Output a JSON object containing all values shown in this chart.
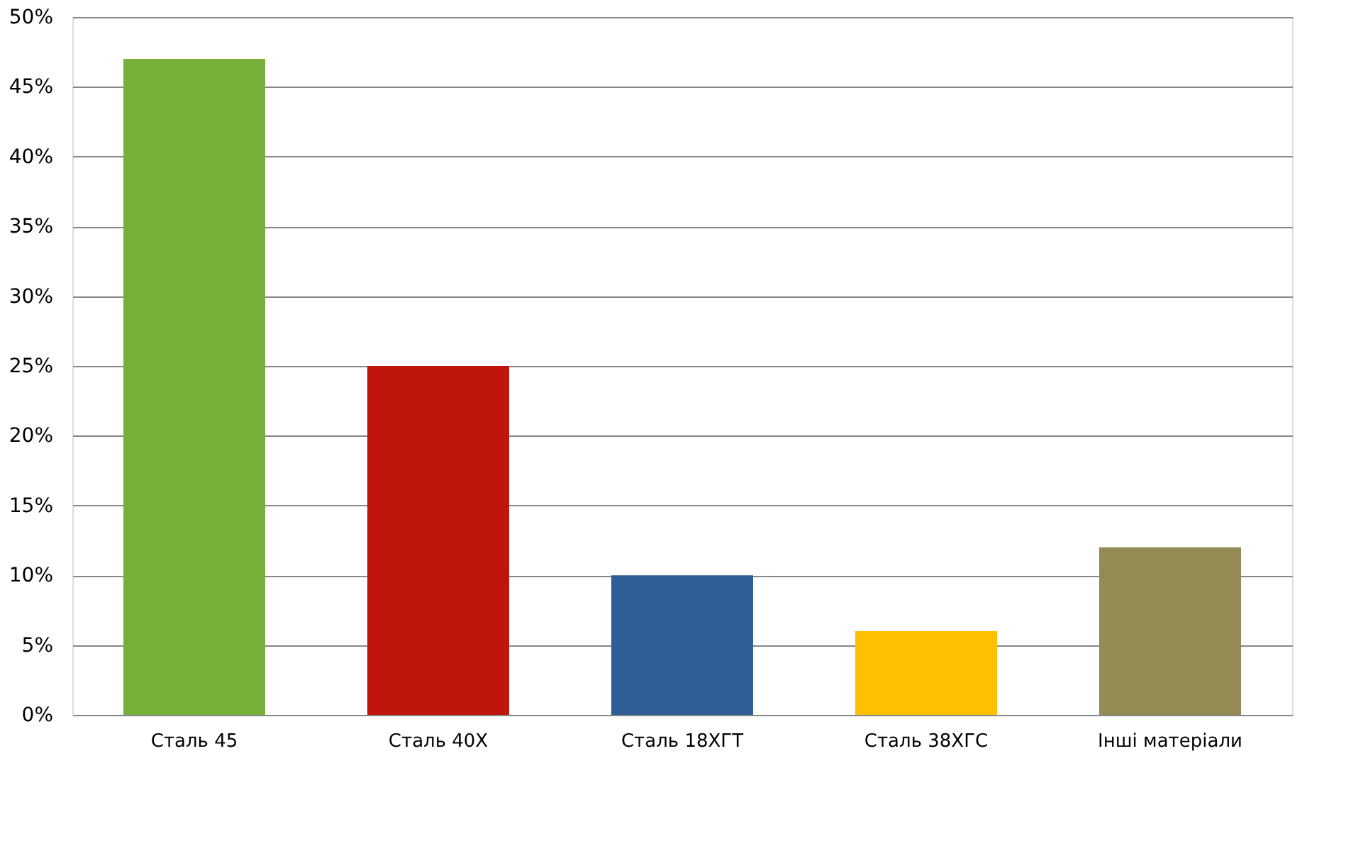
{
  "chart_data": {
    "type": "bar",
    "categories": [
      "Сталь 45",
      "Сталь 40Х",
      "Сталь 18ХГТ",
      "Сталь 38ХГС",
      "Інші матеріали"
    ],
    "values": [
      47,
      25,
      10,
      6,
      12
    ],
    "colors": [
      "#77b038",
      "#c0150c",
      "#2e5e95",
      "#ffc000",
      "#948a54"
    ],
    "ylim": [
      0,
      50
    ],
    "yticks": [
      {
        "value": 0,
        "label": "0%"
      },
      {
        "value": 5,
        "label": "5%"
      },
      {
        "value": 10,
        "label": "10%"
      },
      {
        "value": 15,
        "label": "15%"
      },
      {
        "value": 20,
        "label": "20%"
      },
      {
        "value": 25,
        "label": "25%"
      },
      {
        "value": 30,
        "label": "30%"
      },
      {
        "value": 35,
        "label": "35%"
      },
      {
        "value": 40,
        "label": "40%"
      },
      {
        "value": 45,
        "label": "45%"
      },
      {
        "value": 50,
        "label": "50%"
      }
    ],
    "grid": "y"
  }
}
